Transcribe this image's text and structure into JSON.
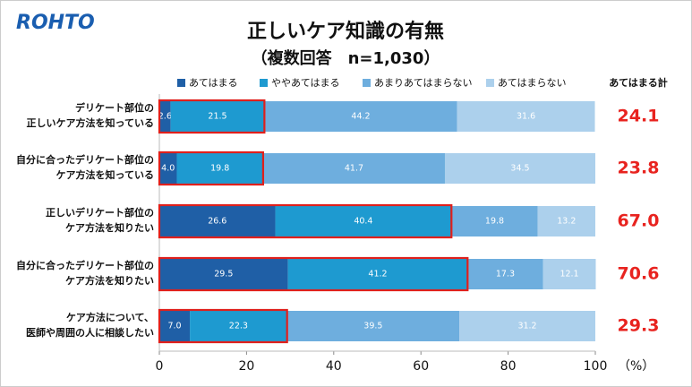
{
  "logo": "ROHTO",
  "chart_data": {
    "type": "stacked-barh",
    "title": "正しいケア知識の有無",
    "subtitle": "（複数回答　n=1,030）",
    "categories": [
      [
        "デリケート部位の",
        "正しいケア方法を知っている"
      ],
      [
        "自分に合ったデリケート部位の",
        "ケア方法を知っている"
      ],
      [
        "正しいデリケート部位の",
        "ケア方法を知りたい"
      ],
      [
        "自分に合ったデリケート部位の",
        "ケア方法を知りたい"
      ],
      [
        "ケア方法について、",
        "医師や周囲の人に相談したい"
      ]
    ],
    "series": [
      {
        "name": "あてはまる",
        "color": "#1f5fa6",
        "values": [
          2.6,
          4.0,
          26.6,
          29.5,
          7.0
        ],
        "value_labels": [
          "2.6",
          "4.0",
          "26.6",
          "29.5",
          "7.0"
        ]
      },
      {
        "name": "ややあてはまる",
        "color": "#1e9ad0",
        "values": [
          21.5,
          19.8,
          40.4,
          41.2,
          22.3
        ],
        "value_labels": [
          "21.5",
          "19.8",
          "40.4",
          "41.2",
          "22.3"
        ]
      },
      {
        "name": "あまりあてはまらない",
        "color": "#6eaede",
        "values": [
          44.2,
          41.7,
          19.8,
          17.3,
          39.5
        ],
        "value_labels": [
          "44.2",
          "41.7",
          "19.8",
          "17.3",
          "39.5"
        ]
      },
      {
        "name": "あてはまらない",
        "color": "#acd0ec",
        "values": [
          31.6,
          34.5,
          13.2,
          12.1,
          31.2
        ],
        "value_labels": [
          "31.6",
          "34.5",
          "13.2",
          "12.1",
          "31.2"
        ]
      }
    ],
    "totals": {
      "name": "あてはまる計",
      "color": "#e8231f",
      "values": [
        24.1,
        23.8,
        67.0,
        70.6,
        29.3
      ],
      "value_labels": [
        "24.1",
        "23.8",
        "67.0",
        "70.6",
        "29.3"
      ]
    },
    "highlight_color": "#e0201c",
    "xlim": [
      0,
      100
    ],
    "xticks": [
      0,
      20,
      40,
      60,
      80,
      100
    ],
    "x_unit": "（%）"
  }
}
